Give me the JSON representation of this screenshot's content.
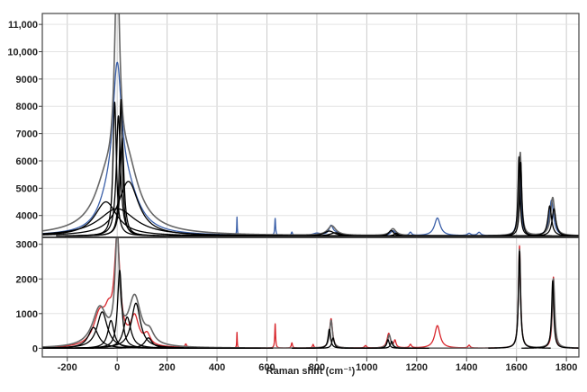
{
  "chart_data": {
    "type": "line",
    "title": "",
    "xlabel": "Raman shift (cm⁻¹)",
    "ylabel": "",
    "xlim": [
      -300,
      1850
    ],
    "x_ticks": [
      -200,
      0,
      200,
      400,
      600,
      800,
      1000,
      1200,
      1400,
      1600,
      1800
    ],
    "x_tick_labels": [
      "-200",
      "0",
      "200",
      "400",
      "600",
      "800",
      "1000",
      "1200",
      "1400",
      "1600",
      "1800"
    ],
    "grid": true,
    "legend": "none",
    "panels": [
      {
        "name": "upper",
        "ylim": [
          3200,
          11400
        ],
        "y_ticks": [
          4000,
          5000,
          6000,
          7000,
          8000,
          9000,
          10000,
          11000
        ],
        "y_tick_labels": [
          "4000",
          "5000",
          "6000",
          "7000",
          "8000",
          "9000",
          "10,000",
          "11,000"
        ],
        "baseline": 3250,
        "series": [
          {
            "role": "measured spectrum",
            "color": "#3a5fa8",
            "peaks": [
              {
                "x": 0,
                "height": 5000,
                "width": 22
              },
              {
                "x": 40,
                "height": 1400,
                "width": 60
              },
              {
                "x": -40,
                "height": 700,
                "width": 45
              },
              {
                "x": 480,
                "height": 650,
                "width": 1.2
              },
              {
                "x": 633,
                "height": 620,
                "width": 2
              },
              {
                "x": 700,
                "height": 120,
                "width": 3
              },
              {
                "x": 800,
                "height": 80,
                "width": 20
              },
              {
                "x": 857,
                "height": 350,
                "width": 10
              },
              {
                "x": 880,
                "height": 80,
                "width": 15
              },
              {
                "x": 1105,
                "height": 180,
                "width": 12
              },
              {
                "x": 1175,
                "height": 120,
                "width": 6
              },
              {
                "x": 1283,
                "height": 650,
                "width": 14
              },
              {
                "x": 1410,
                "height": 80,
                "width": 8
              },
              {
                "x": 1450,
                "height": 120,
                "width": 8
              },
              {
                "x": 1612,
                "height": 2800,
                "width": 6
              },
              {
                "x": 1740,
                "height": 1300,
                "width": 10
              }
            ]
          },
          {
            "role": "fitted envelope",
            "color": "#666666",
            "peaks": [
              {
                "x": -45,
                "height": 1250,
                "width": 55
              },
              {
                "x": 0,
                "height": 7750,
                "width": 12
              },
              {
                "x": 0,
                "height": 500,
                "width": 120
              },
              {
                "x": 40,
                "height": 1950,
                "width": 55
              },
              {
                "x": 860,
                "height": 350,
                "width": 20
              },
              {
                "x": 1105,
                "height": 250,
                "width": 15
              },
              {
                "x": 1615,
                "height": 3050,
                "width": 6
              },
              {
                "x": 1745,
                "height": 1400,
                "width": 10
              }
            ]
          },
          {
            "role": "component bands",
            "color": "#000000",
            "peak_sets": [
              [
                {
                  "x": -45,
                  "height": 1250,
                  "width": 55
                }
              ],
              [
                {
                  "x": 45,
                  "height": 2000,
                  "width": 50
                }
              ],
              [
                {
                  "x": -10,
                  "height": 4900,
                  "width": 8
                }
              ],
              [
                {
                  "x": 5,
                  "height": 4400,
                  "width": 10
                }
              ],
              [
                {
                  "x": 15,
                  "height": 5000,
                  "width": 7
                }
              ],
              [
                {
                  "x": 20,
                  "height": 3600,
                  "width": 9
                }
              ],
              [
                {
                  "x": 0,
                  "height": 1000,
                  "width": 90
                }
              ],
              [
                {
                  "x": 850,
                  "height": 180,
                  "width": 25
                }
              ],
              [
                {
                  "x": 875,
                  "height": 120,
                  "width": 25
                }
              ],
              [
                {
                  "x": 1098,
                  "height": 200,
                  "width": 12
                }
              ],
              [
                {
                  "x": 1118,
                  "height": 100,
                  "width": 10
                }
              ],
              [
                {
                  "x": 1610,
                  "height": 2900,
                  "width": 5
                }
              ],
              [
                {
                  "x": 1617,
                  "height": 2700,
                  "width": 5
                }
              ],
              [
                {
                  "x": 1733,
                  "height": 1100,
                  "width": 9
                }
              ],
              [
                {
                  "x": 1750,
                  "height": 1000,
                  "width": 9
                }
              ]
            ]
          }
        ]
      },
      {
        "name": "lower",
        "ylim": [
          -250,
          3200
        ],
        "y_ticks": [
          0,
          1000,
          2000,
          3000
        ],
        "y_tick_labels": [
          "0",
          "1000",
          "2000",
          "3000"
        ],
        "baseline": 0,
        "series": [
          {
            "role": "measured spectrum",
            "color": "#d8262c",
            "peaks": [
              {
                "x": 0,
                "height": 3000,
                "width": 14
              },
              {
                "x": -70,
                "height": 900,
                "width": 30
              },
              {
                "x": -35,
                "height": 600,
                "width": 18
              },
              {
                "x": 70,
                "height": 800,
                "width": 20
              },
              {
                "x": 120,
                "height": 300,
                "width": 15
              },
              {
                "x": 275,
                "height": 100,
                "width": 4
              },
              {
                "x": 480,
                "height": 450,
                "width": 1.2
              },
              {
                "x": 633,
                "height": 700,
                "width": 2
              },
              {
                "x": 700,
                "height": 150,
                "width": 3
              },
              {
                "x": 785,
                "height": 100,
                "width": 3
              },
              {
                "x": 857,
                "height": 850,
                "width": 7
              },
              {
                "x": 995,
                "height": 70,
                "width": 5
              },
              {
                "x": 1088,
                "height": 420,
                "width": 8
              },
              {
                "x": 1113,
                "height": 200,
                "width": 5
              },
              {
                "x": 1175,
                "height": 100,
                "width": 5
              },
              {
                "x": 1283,
                "height": 650,
                "width": 13
              },
              {
                "x": 1410,
                "height": 80,
                "width": 5
              },
              {
                "x": 1612,
                "height": 2950,
                "width": 5
              },
              {
                "x": 1748,
                "height": 2050,
                "width": 5
              }
            ]
          },
          {
            "role": "fitted envelope",
            "color": "#666666",
            "peaks": [
              {
                "x": 0,
                "height": 3050,
                "width": 10
              },
              {
                "x": -70,
                "height": 1100,
                "width": 35
              },
              {
                "x": 70,
                "height": 1400,
                "width": 30
              },
              {
                "x": 130,
                "height": 300,
                "width": 20
              },
              {
                "x": 857,
                "height": 800,
                "width": 7
              },
              {
                "x": 1090,
                "height": 380,
                "width": 8
              },
              {
                "x": 1612,
                "height": 2850,
                "width": 5
              },
              {
                "x": 1748,
                "height": 2000,
                "width": 6
              }
            ]
          },
          {
            "role": "component bands",
            "color": "#000000",
            "peak_sets": [
              [
                {
                  "x": -95,
                  "height": 600,
                  "width": 25
                }
              ],
              [
                {
                  "x": -60,
                  "height": 1050,
                  "width": 25
                }
              ],
              [
                {
                  "x": -25,
                  "height": 800,
                  "width": 15
                }
              ],
              [
                {
                  "x": 10,
                  "height": 2250,
                  "width": 10
                }
              ],
              [
                {
                  "x": 40,
                  "height": 900,
                  "width": 18
                }
              ],
              [
                {
                  "x": 75,
                  "height": 1300,
                  "width": 22
                }
              ],
              [
                {
                  "x": 125,
                  "height": 300,
                  "width": 18
                }
              ],
              [
                {
                  "x": 850,
                  "height": 550,
                  "width": 6
                }
              ],
              [
                {
                  "x": 865,
                  "height": 300,
                  "width": 6
                }
              ],
              [
                {
                  "x": 1085,
                  "height": 250,
                  "width": 6
                }
              ],
              [
                {
                  "x": 1100,
                  "height": 200,
                  "width": 6
                }
              ],
              [
                {
                  "x": 1612,
                  "height": 2800,
                  "width": 5
                }
              ],
              [
                {
                  "x": 1745,
                  "height": 1950,
                  "width": 5
                }
              ]
            ]
          }
        ]
      }
    ]
  }
}
